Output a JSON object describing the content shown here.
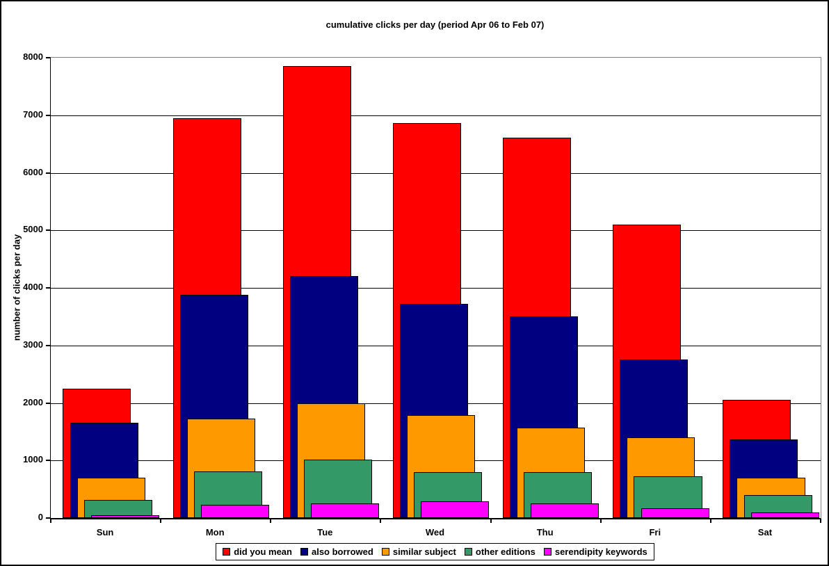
{
  "chart_data": {
    "type": "bar",
    "bar_style": "overlapped",
    "title": "cumulative clicks per day (period Apr 06 to Feb 07)",
    "xlabel": "",
    "ylabel": "number of clicks per day",
    "categories": [
      "Sun",
      "Mon",
      "Tue",
      "Wed",
      "Thu",
      "Fri",
      "Sat"
    ],
    "series": [
      {
        "name": "did you mean",
        "color": "#FF0000",
        "values": [
          2250,
          6950,
          7850,
          6860,
          6610,
          5100,
          2050
        ]
      },
      {
        "name": "also borrowed",
        "color": "#000080",
        "values": [
          1650,
          3880,
          4200,
          3720,
          3510,
          2760,
          1360
        ]
      },
      {
        "name": "similar subject",
        "color": "#FF9900",
        "values": [
          700,
          1730,
          2000,
          1790,
          1570,
          1400,
          700
        ]
      },
      {
        "name": "other editions",
        "color": "#339966",
        "values": [
          310,
          810,
          1010,
          800,
          800,
          720,
          400
        ]
      },
      {
        "name": "serendipity keywords",
        "color": "#FF00FF",
        "values": [
          50,
          230,
          260,
          290,
          250,
          170,
          100
        ]
      }
    ],
    "ylim": [
      0,
      8000
    ],
    "ytick_step": 1000,
    "ytick_labels": [
      "0",
      "1000",
      "2000",
      "3000",
      "4000",
      "5000",
      "6000",
      "7000",
      "8000"
    ],
    "grid": true,
    "legend_position": "bottom",
    "colors": {
      "plot_border": "#848484",
      "axis": "#000000",
      "background": "#FFFFFF",
      "text": "#000000"
    }
  }
}
